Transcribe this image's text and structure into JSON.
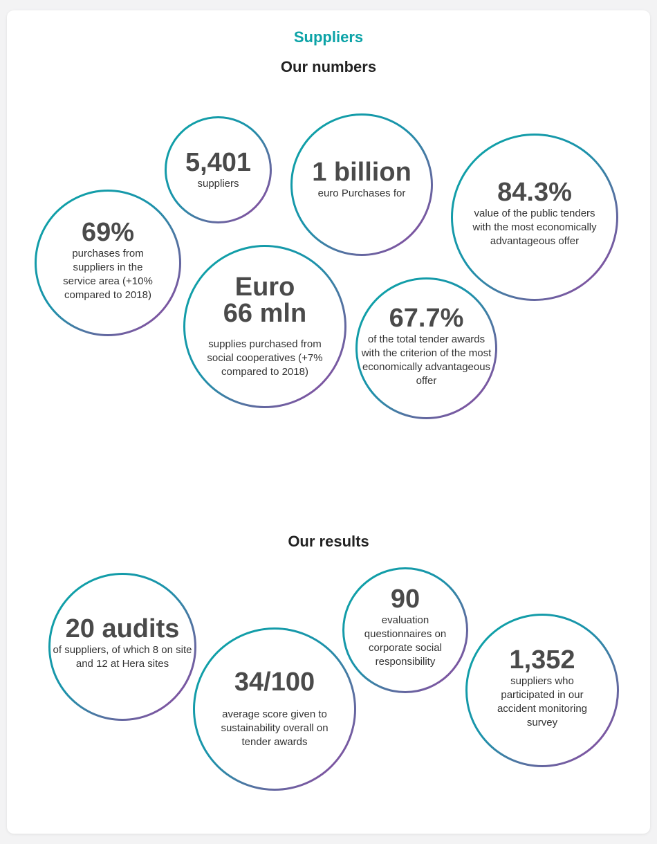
{
  "section_label": "Suppliers",
  "numbers_heading": "Our numbers",
  "results_heading": "Our results",
  "numbers": [
    {
      "value": "5,401",
      "desc": "suppliers"
    },
    {
      "value": "1 billion",
      "desc": "euro Purchases for"
    },
    {
      "value": "84.3%",
      "desc": "value of the public tenders with the most economically advantageous offer"
    },
    {
      "value": "69%",
      "desc": "purchases from suppliers in the service area (+10% compared to 2018)"
    },
    {
      "value_line1": "Euro",
      "value_line2": "66 mln",
      "desc": "supplies purchased from social cooperatives (+7% compared to 2018)"
    },
    {
      "value": "67.7%",
      "desc": "of the total tender awards with the criterion of the most economically advantageous offer"
    }
  ],
  "results": [
    {
      "value": "20 audits",
      "desc": "of suppliers, of which 8 on site and 12 at Hera sites"
    },
    {
      "value": "34/100",
      "desc": "average score given to sustainability overall on tender awards"
    },
    {
      "value": "90",
      "desc": "evaluation questionnaires on corporate social responsibility"
    },
    {
      "value": "1,352",
      "desc": "suppliers who participated in our accident monitoring survey"
    }
  ],
  "colors": {
    "accent": "#0ca3a7",
    "gradient_end": "#9c3fa2"
  }
}
